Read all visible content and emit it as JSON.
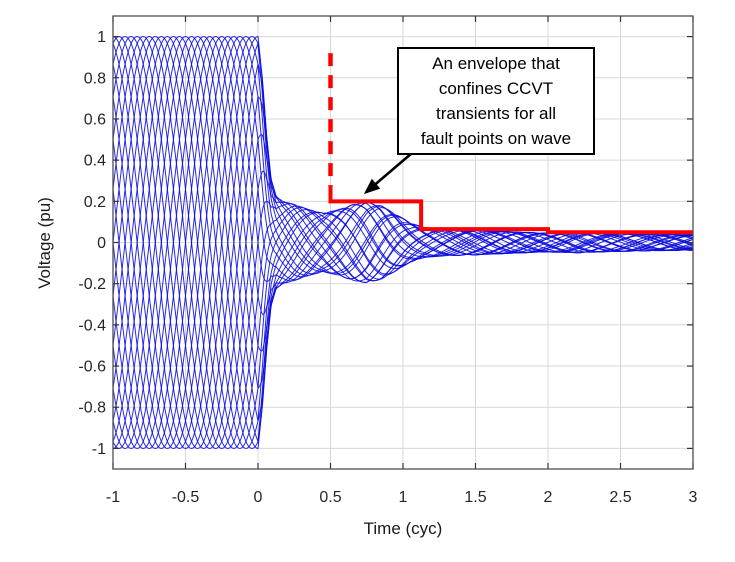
{
  "figure": {
    "background": "#ffffff",
    "grid_color": "#d7d7d7",
    "border_color": "#4d4d4d",
    "tick_mark_color": "#333333"
  },
  "axes": {
    "x_label": "Time (cyc)",
    "y_label": "Voltage (pu)"
  },
  "annotation": {
    "lines": [
      "An envelope that",
      "confines CCVT",
      "transients for all",
      "fault points on wave"
    ]
  },
  "chart_data": {
    "type": "line",
    "title": "",
    "xlabel": "Time (cyc)",
    "ylabel": "Voltage (pu)",
    "xlim": [
      -1,
      3
    ],
    "ylim": [
      -1.1,
      1.1
    ],
    "grid": true,
    "legend_position": "none",
    "x_ticks": [
      -1,
      -0.5,
      0,
      0.5,
      1,
      1.5,
      2,
      2.5,
      3
    ],
    "x_tick_labels": [
      "-1",
      "-0.5",
      "0",
      "0.5",
      "1",
      "1.5",
      "2",
      "2.5",
      "3"
    ],
    "y_ticks": [
      1,
      0.8,
      0.6,
      0.4,
      0.2,
      0,
      -0.2,
      -0.4,
      -0.6,
      -0.8,
      -1
    ],
    "y_tick_labels": [
      "1",
      "0.8",
      "0.6",
      "0.4",
      "0.2",
      "0",
      "-0.2",
      "-0.4",
      "-0.6",
      "-0.8",
      "-1"
    ],
    "series": [
      {
        "name": "ccvt-transient-traces",
        "description": "CCVT secondary-voltage transients for faults at evenly spaced points on wave: 1 pu 1-cyc sine before the fault at t=0, decaying oscillatory transient after",
        "color": "#0a0ae0",
        "line_width": 1,
        "num_traces": 24,
        "frequency_cyc": 1.0,
        "pre_fault_amplitude": 1.0,
        "fault_time": 0,
        "post_fault_envelope": {
          "t": [
            0,
            0.03,
            0.06,
            0.09,
            0.125,
            0.17,
            0.25,
            0.35,
            0.45,
            0.55,
            0.65,
            0.75,
            0.85,
            0.95,
            1.05,
            1.15,
            1.3,
            1.5,
            1.7,
            1.9,
            2.0,
            2.2,
            2.4,
            2.7,
            3.0
          ],
          "amplitude": [
            1.0,
            0.8,
            0.52,
            0.31,
            0.225,
            0.2,
            0.185,
            0.16,
            0.142,
            0.158,
            0.183,
            0.196,
            0.178,
            0.138,
            0.095,
            0.072,
            0.064,
            0.06,
            0.054,
            0.048,
            0.046,
            0.05,
            0.045,
            0.04,
            0.038
          ]
        }
      },
      {
        "name": "envelope-dashed-lead-in",
        "color": "#ff0000",
        "style": "dashed",
        "line_width": 4.5,
        "points": [
          [
            0.5,
            0.92
          ],
          [
            0.5,
            0.27
          ]
        ]
      },
      {
        "name": "envelope-step",
        "color": "#ff0000",
        "style": "solid",
        "line_width": 4,
        "points": [
          [
            0.5,
            0.27
          ],
          [
            0.5,
            0.2
          ],
          [
            1.125,
            0.2
          ],
          [
            1.125,
            0.065
          ],
          [
            2,
            0.065
          ],
          [
            2,
            0.05
          ],
          [
            3,
            0.05
          ]
        ]
      }
    ],
    "annotation": {
      "text": "An envelope that confines CCVT transients for all fault points on wave",
      "arrow_target_xy": [
        0.73,
        0.235
      ]
    }
  }
}
